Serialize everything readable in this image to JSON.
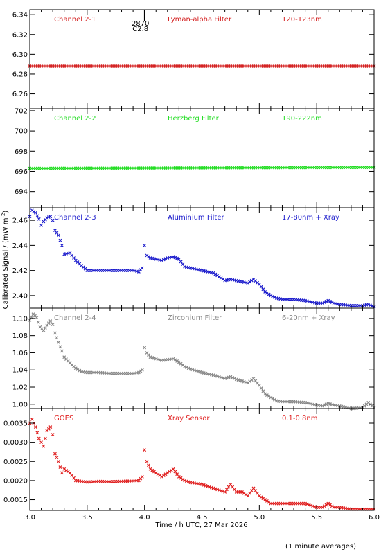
{
  "xlabel": "Time / h UTC, 27 Mar 2026",
  "ylabel": "Calibrated Signal / (mW m",
  "ylabel_sup": "-2",
  "ylabel_end": ")",
  "footnote": "(1 minute averages)",
  "event_marker": {
    "x": 4.0,
    "line1": "2870",
    "line2": "C2.8"
  },
  "chart_data": [
    {
      "type": "scatter",
      "labels": [
        "Channel 2-1",
        "Lyman-alpha Filter",
        "120-123nm"
      ],
      "color": "#d42020",
      "xlim": [
        3.0,
        6.0
      ],
      "ylim": [
        6.245,
        6.345
      ],
      "xticks": [
        3.0,
        3.5,
        4.0,
        4.5,
        5.0,
        5.5,
        6.0
      ],
      "yticks": [
        6.26,
        6.28,
        6.3,
        6.32,
        6.34
      ],
      "yfmt": 2,
      "points": [
        [
          3.0,
          6.288
        ],
        [
          6.0,
          6.288
        ]
      ]
    },
    {
      "type": "scatter",
      "labels": [
        "Channel 2-2",
        "Herzberg Filter",
        "190-222nm"
      ],
      "color": "#22dd22",
      "xlim": [
        3.0,
        6.0
      ],
      "ylim": [
        692.4,
        702.2
      ],
      "xticks": [
        3.0,
        3.5,
        4.0,
        4.5,
        5.0,
        5.5,
        6.0
      ],
      "yticks": [
        694,
        696,
        698,
        700,
        702
      ],
      "yfmt": 0,
      "points": [
        [
          3.0,
          696.3
        ],
        [
          6.0,
          696.4
        ]
      ]
    },
    {
      "type": "scatter",
      "labels": [
        "Channel 2-3",
        "Aluminium Filter",
        "17-80nm + Xray"
      ],
      "color": "#1c1ccc",
      "xlim": [
        3.0,
        6.0
      ],
      "ylim": [
        2.39,
        2.47
      ],
      "xticks": [
        3.0,
        3.5,
        4.0,
        4.5,
        5.0,
        5.5,
        6.0
      ],
      "yticks": [
        2.4,
        2.42,
        2.44,
        2.46
      ],
      "yfmt": 2,
      "points": [
        [
          3.0,
          2.463
        ],
        [
          3.02,
          2.468
        ],
        [
          3.05,
          2.466
        ],
        [
          3.08,
          2.461
        ],
        [
          3.1,
          2.456
        ],
        [
          3.12,
          2.459
        ],
        [
          3.15,
          2.462
        ],
        [
          3.18,
          2.463
        ],
        [
          3.2,
          2.46
        ],
        [
          3.22,
          2.452
        ],
        [
          3.25,
          2.448
        ],
        [
          3.28,
          2.44
        ],
        [
          3.3,
          2.433
        ],
        [
          3.35,
          2.434
        ],
        [
          3.4,
          2.428
        ],
        [
          3.45,
          2.424
        ],
        [
          3.5,
          2.42
        ],
        [
          3.6,
          2.42
        ],
        [
          3.7,
          2.42
        ],
        [
          3.8,
          2.42
        ],
        [
          3.9,
          2.42
        ],
        [
          3.95,
          2.419
        ],
        [
          3.98,
          2.422
        ],
        [
          4.0,
          2.44
        ],
        [
          4.02,
          2.432
        ],
        [
          4.05,
          2.43
        ],
        [
          4.1,
          2.429
        ],
        [
          4.15,
          2.428
        ],
        [
          4.2,
          2.43
        ],
        [
          4.25,
          2.431
        ],
        [
          4.3,
          2.429
        ],
        [
          4.35,
          2.423
        ],
        [
          4.4,
          2.422
        ],
        [
          4.5,
          2.42
        ],
        [
          4.6,
          2.418
        ],
        [
          4.7,
          2.412
        ],
        [
          4.75,
          2.413
        ],
        [
          4.8,
          2.412
        ],
        [
          4.85,
          2.411
        ],
        [
          4.9,
          2.41
        ],
        [
          4.95,
          2.413
        ],
        [
          5.0,
          2.409
        ],
        [
          5.05,
          2.403
        ],
        [
          5.1,
          2.4
        ],
        [
          5.15,
          2.398
        ],
        [
          5.2,
          2.397
        ],
        [
          5.3,
          2.397
        ],
        [
          5.4,
          2.396
        ],
        [
          5.5,
          2.394
        ],
        [
          5.55,
          2.394
        ],
        [
          5.6,
          2.396
        ],
        [
          5.65,
          2.394
        ],
        [
          5.7,
          2.393
        ],
        [
          5.8,
          2.392
        ],
        [
          5.9,
          2.392
        ],
        [
          5.95,
          2.393
        ],
        [
          6.0,
          2.391
        ]
      ]
    },
    {
      "type": "scatter",
      "labels": [
        "Channel 2-4",
        "Zirconium Filter",
        "6-20nm + Xray"
      ],
      "color": "#888888",
      "xlim": [
        3.0,
        6.0
      ],
      "ylim": [
        0.995,
        1.112
      ],
      "xticks": [
        3.0,
        3.5,
        4.0,
        4.5,
        5.0,
        5.5,
        6.0
      ],
      "yticks": [
        1.0,
        1.02,
        1.04,
        1.06,
        1.08,
        1.1
      ],
      "yfmt": 2,
      "points": [
        [
          3.0,
          1.098
        ],
        [
          3.03,
          1.105
        ],
        [
          3.06,
          1.101
        ],
        [
          3.09,
          1.09
        ],
        [
          3.12,
          1.086
        ],
        [
          3.15,
          1.092
        ],
        [
          3.18,
          1.097
        ],
        [
          3.2,
          1.093
        ],
        [
          3.22,
          1.083
        ],
        [
          3.25,
          1.072
        ],
        [
          3.28,
          1.062
        ],
        [
          3.3,
          1.055
        ],
        [
          3.35,
          1.048
        ],
        [
          3.4,
          1.042
        ],
        [
          3.45,
          1.038
        ],
        [
          3.5,
          1.037
        ],
        [
          3.6,
          1.037
        ],
        [
          3.7,
          1.036
        ],
        [
          3.8,
          1.036
        ],
        [
          3.9,
          1.036
        ],
        [
          3.95,
          1.037
        ],
        [
          3.98,
          1.04
        ],
        [
          4.0,
          1.066
        ],
        [
          4.02,
          1.06
        ],
        [
          4.05,
          1.055
        ],
        [
          4.1,
          1.053
        ],
        [
          4.15,
          1.051
        ],
        [
          4.2,
          1.052
        ],
        [
          4.25,
          1.053
        ],
        [
          4.3,
          1.049
        ],
        [
          4.35,
          1.044
        ],
        [
          4.4,
          1.041
        ],
        [
          4.5,
          1.037
        ],
        [
          4.6,
          1.034
        ],
        [
          4.7,
          1.03
        ],
        [
          4.75,
          1.032
        ],
        [
          4.8,
          1.029
        ],
        [
          4.85,
          1.027
        ],
        [
          4.9,
          1.025
        ],
        [
          4.95,
          1.03
        ],
        [
          5.0,
          1.022
        ],
        [
          5.05,
          1.012
        ],
        [
          5.1,
          1.008
        ],
        [
          5.15,
          1.004
        ],
        [
          5.2,
          1.003
        ],
        [
          5.3,
          1.003
        ],
        [
          5.4,
          1.002
        ],
        [
          5.5,
          0.999
        ],
        [
          5.55,
          0.998
        ],
        [
          5.6,
          1.001
        ],
        [
          5.65,
          0.999
        ],
        [
          5.7,
          0.998
        ],
        [
          5.8,
          0.995
        ],
        [
          5.9,
          0.996
        ],
        [
          5.95,
          1.002
        ],
        [
          6.0,
          0.996
        ]
      ]
    },
    {
      "type": "scatter",
      "labels": [
        "GOES",
        "Xray Sensor",
        "0.1-0.8nm"
      ],
      "color": "#e02020",
      "xlim": [
        3.0,
        6.0
      ],
      "ylim": [
        0.00122,
        0.00388
      ],
      "xticks": [
        3.0,
        3.5,
        4.0,
        4.5,
        5.0,
        5.5,
        6.0
      ],
      "yticks": [
        0.0015,
        0.002,
        0.0025,
        0.003,
        0.0035
      ],
      "yfmt": 4,
      "points": [
        [
          3.0,
          0.0035
        ],
        [
          3.02,
          0.0036
        ],
        [
          3.05,
          0.0034
        ],
        [
          3.08,
          0.0031
        ],
        [
          3.1,
          0.003
        ],
        [
          3.12,
          0.0029
        ],
        [
          3.15,
          0.0033
        ],
        [
          3.18,
          0.0034
        ],
        [
          3.2,
          0.0032
        ],
        [
          3.22,
          0.0027
        ],
        [
          3.25,
          0.0025
        ],
        [
          3.28,
          0.0022
        ],
        [
          3.3,
          0.0023
        ],
        [
          3.35,
          0.0022
        ],
        [
          3.4,
          0.002
        ],
        [
          3.5,
          0.00196
        ],
        [
          3.6,
          0.00198
        ],
        [
          3.7,
          0.00197
        ],
        [
          3.8,
          0.00198
        ],
        [
          3.9,
          0.00199
        ],
        [
          3.95,
          0.002
        ],
        [
          3.98,
          0.0021
        ],
        [
          4.0,
          0.0028
        ],
        [
          4.02,
          0.0025
        ],
        [
          4.05,
          0.0023
        ],
        [
          4.1,
          0.0022
        ],
        [
          4.15,
          0.0021
        ],
        [
          4.2,
          0.0022
        ],
        [
          4.25,
          0.0023
        ],
        [
          4.3,
          0.0021
        ],
        [
          4.35,
          0.002
        ],
        [
          4.4,
          0.00195
        ],
        [
          4.5,
          0.0019
        ],
        [
          4.6,
          0.0018
        ],
        [
          4.7,
          0.0017
        ],
        [
          4.75,
          0.0019
        ],
        [
          4.8,
          0.0017
        ],
        [
          4.85,
          0.0017
        ],
        [
          4.9,
          0.0016
        ],
        [
          4.95,
          0.0018
        ],
        [
          5.0,
          0.0016
        ],
        [
          5.05,
          0.0015
        ],
        [
          5.1,
          0.0014
        ],
        [
          5.2,
          0.0014
        ],
        [
          5.3,
          0.0014
        ],
        [
          5.4,
          0.0014
        ],
        [
          5.5,
          0.0013
        ],
        [
          5.55,
          0.0013
        ],
        [
          5.6,
          0.0014
        ],
        [
          5.65,
          0.0013
        ],
        [
          5.7,
          0.0013
        ],
        [
          5.8,
          0.00125
        ],
        [
          5.9,
          0.00125
        ],
        [
          6.0,
          0.00125
        ]
      ]
    }
  ]
}
